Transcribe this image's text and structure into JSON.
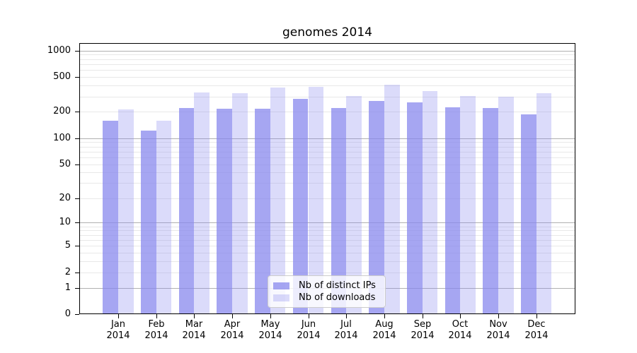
{
  "chart_data": {
    "type": "bar",
    "title": "genomes 2014",
    "categories": [
      "Jan",
      "Feb",
      "Mar",
      "Apr",
      "May",
      "Jun",
      "Jul",
      "Aug",
      "Sep",
      "Oct",
      "Nov",
      "Dec"
    ],
    "category_year": "2014",
    "series": [
      {
        "name": "Nb of distinct IPs",
        "fill": "rgba(136,136,238,0.75)",
        "values": [
          158,
          122,
          223,
          217,
          216,
          281,
          223,
          268,
          258,
          227,
          221,
          187
        ]
      },
      {
        "name": "Nb of downloads",
        "fill": "rgba(136,136,238,0.30)",
        "values": [
          214,
          158,
          335,
          329,
          379,
          390,
          303,
          406,
          345,
          303,
          299,
          329
        ]
      }
    ],
    "y_axis": {
      "scale": "symlog",
      "ticks": [
        0,
        1,
        2,
        5,
        10,
        20,
        50,
        100,
        200,
        500,
        1000
      ],
      "ylim": [
        0,
        1220
      ],
      "major_gridlines": [
        1,
        10,
        100,
        1000
      ],
      "minor_gridline_decades": [
        1,
        10,
        100
      ]
    },
    "x_axis": {
      "label_line2": "2014"
    },
    "legend": {
      "position": "lower center"
    },
    "colors": {
      "major_grid": "#b0b0b0",
      "minor_grid": "#e8e8e8",
      "frame": "#000000",
      "text": "#000000",
      "bar_base": "#8888ee"
    },
    "grid": true
  }
}
